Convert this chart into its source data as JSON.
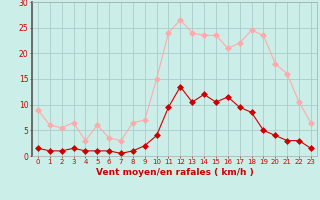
{
  "hours": [
    0,
    1,
    2,
    3,
    4,
    5,
    6,
    7,
    8,
    9,
    10,
    11,
    12,
    13,
    14,
    15,
    16,
    17,
    18,
    19,
    20,
    21,
    22,
    23
  ],
  "wind_avg": [
    1.5,
    1,
    1,
    1.5,
    1,
    1,
    1,
    0.5,
    1,
    2,
    4,
    9.5,
    13.5,
    10.5,
    12,
    10.5,
    11.5,
    9.5,
    8.5,
    5,
    4,
    3,
    3,
    1.5
  ],
  "wind_gust": [
    9,
    6,
    5.5,
    6.5,
    3,
    6,
    3.5,
    3,
    6.5,
    7,
    15,
    24,
    26.5,
    24,
    23.5,
    23.5,
    21,
    22,
    24.5,
    23.5,
    18,
    16,
    10.5,
    6.5
  ],
  "avg_color": "#cc0000",
  "gust_color": "#ffaaaa",
  "bg_color": "#cceee8",
  "grid_color": "#aacccc",
  "tick_color": "#cc0000",
  "xlabel": "Vent moyen/en rafales ( km/h )",
  "ylim": [
    0,
    30
  ],
  "yticks": [
    0,
    5,
    10,
    15,
    20,
    25,
    30
  ],
  "linewidth": 0.8,
  "markersize": 3.0
}
